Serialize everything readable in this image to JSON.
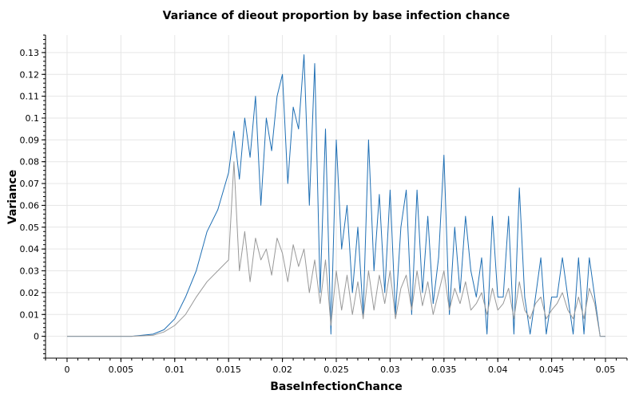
{
  "chart_data": {
    "type": "line",
    "title": "Variance of dieout proportion by base infection chance",
    "xlabel": "BaseInfectionChance",
    "ylabel": "Variance",
    "xlim": [
      -0.002,
      0.052
    ],
    "ylim": [
      -0.01,
      0.138
    ],
    "xticks": [
      0,
      0.005,
      0.01,
      0.015,
      0.02,
      0.025,
      0.03,
      0.035,
      0.04,
      0.045,
      0.05
    ],
    "xtick_labels": [
      "0",
      "0.005",
      "0.01",
      "0.015",
      "0.02",
      "0.025",
      "0.03",
      "0.035",
      "0.04",
      "0.045",
      "0.05"
    ],
    "yticks": [
      0,
      0.01,
      0.02,
      0.03,
      0.04,
      0.05,
      0.06,
      0.07,
      0.08,
      0.09,
      0.1,
      0.11,
      0.12,
      0.13
    ],
    "ytick_labels": [
      "0",
      "0.01",
      "0.02",
      "0.03",
      "0.04",
      "0.05",
      "0.06",
      "0.07",
      "0.08",
      "0.09",
      "0.1",
      "0.11",
      "0.12",
      "0.13"
    ],
    "grid": true,
    "series": [
      {
        "color": "#1f6fb4",
        "x": [
          0,
          0.006,
          0.008,
          0.009,
          0.01,
          0.011,
          0.012,
          0.013,
          0.014,
          0.015,
          0.0155,
          0.016,
          0.0165,
          0.017,
          0.0175,
          0.018,
          0.0185,
          0.019,
          0.0195,
          0.02,
          0.0205,
          0.021,
          0.0215,
          0.022,
          0.0225,
          0.023,
          0.0235,
          0.024,
          0.0245,
          0.025,
          0.0255,
          0.026,
          0.0265,
          0.027,
          0.0275,
          0.028,
          0.0285,
          0.029,
          0.0295,
          0.03,
          0.0305,
          0.031,
          0.0315,
          0.032,
          0.0325,
          0.033,
          0.0335,
          0.034,
          0.0345,
          0.035,
          0.0355,
          0.036,
          0.0365,
          0.037,
          0.0375,
          0.038,
          0.0385,
          0.039,
          0.0395,
          0.04,
          0.0405,
          0.041,
          0.0415,
          0.042,
          0.0425,
          0.043,
          0.0435,
          0.044,
          0.0445,
          0.045,
          0.0455,
          0.046,
          0.0465,
          0.047,
          0.0475,
          0.048,
          0.0485,
          0.049,
          0.0495,
          0.05
        ],
        "y": [
          0,
          0,
          0.001,
          0.003,
          0.008,
          0.018,
          0.03,
          0.048,
          0.058,
          0.075,
          0.094,
          0.072,
          0.1,
          0.082,
          0.11,
          0.06,
          0.1,
          0.085,
          0.11,
          0.12,
          0.07,
          0.105,
          0.095,
          0.129,
          0.06,
          0.125,
          0.02,
          0.095,
          0.001,
          0.09,
          0.04,
          0.06,
          0.02,
          0.05,
          0.01,
          0.09,
          0.03,
          0.065,
          0.02,
          0.067,
          0.01,
          0.05,
          0.067,
          0.01,
          0.067,
          0.02,
          0.055,
          0.015,
          0.036,
          0.083,
          0.01,
          0.05,
          0.02,
          0.055,
          0.03,
          0.018,
          0.036,
          0.001,
          0.055,
          0.018,
          0.018,
          0.055,
          0.001,
          0.068,
          0.018,
          0.001,
          0.018,
          0.036,
          0.001,
          0.018,
          0.018,
          0.036,
          0.018,
          0.001,
          0.036,
          0.001,
          0.036,
          0.018,
          0,
          0
        ]
      },
      {
        "color": "#999999",
        "x": [
          0,
          0.006,
          0.008,
          0.009,
          0.01,
          0.011,
          0.012,
          0.013,
          0.014,
          0.015,
          0.0155,
          0.016,
          0.0165,
          0.017,
          0.0175,
          0.018,
          0.0185,
          0.019,
          0.0195,
          0.02,
          0.0205,
          0.021,
          0.0215,
          0.022,
          0.0225,
          0.023,
          0.0235,
          0.024,
          0.0245,
          0.025,
          0.0255,
          0.026,
          0.0265,
          0.027,
          0.0275,
          0.028,
          0.0285,
          0.029,
          0.0295,
          0.03,
          0.0305,
          0.031,
          0.0315,
          0.032,
          0.0325,
          0.033,
          0.0335,
          0.034,
          0.0345,
          0.035,
          0.0355,
          0.036,
          0.0365,
          0.037,
          0.0375,
          0.038,
          0.0385,
          0.039,
          0.0395,
          0.04,
          0.0405,
          0.041,
          0.0415,
          0.042,
          0.0425,
          0.043,
          0.0435,
          0.044,
          0.0445,
          0.045,
          0.0455,
          0.046,
          0.0465,
          0.047,
          0.0475,
          0.048,
          0.0485,
          0.049,
          0.0495,
          0.05
        ],
        "y": [
          0,
          0,
          0.0005,
          0.002,
          0.005,
          0.01,
          0.018,
          0.025,
          0.03,
          0.035,
          0.08,
          0.03,
          0.048,
          0.025,
          0.045,
          0.035,
          0.04,
          0.028,
          0.045,
          0.038,
          0.025,
          0.042,
          0.032,
          0.04,
          0.02,
          0.035,
          0.015,
          0.035,
          0.005,
          0.03,
          0.012,
          0.028,
          0.01,
          0.025,
          0.008,
          0.03,
          0.012,
          0.028,
          0.015,
          0.03,
          0.008,
          0.022,
          0.028,
          0.012,
          0.03,
          0.014,
          0.025,
          0.01,
          0.02,
          0.03,
          0.012,
          0.022,
          0.015,
          0.025,
          0.012,
          0.015,
          0.02,
          0.01,
          0.022,
          0.012,
          0.015,
          0.022,
          0.008,
          0.025,
          0.012,
          0.008,
          0.015,
          0.018,
          0.008,
          0.012,
          0.015,
          0.02,
          0.012,
          0.008,
          0.018,
          0.008,
          0.022,
          0.015,
          0,
          0
        ]
      }
    ]
  }
}
